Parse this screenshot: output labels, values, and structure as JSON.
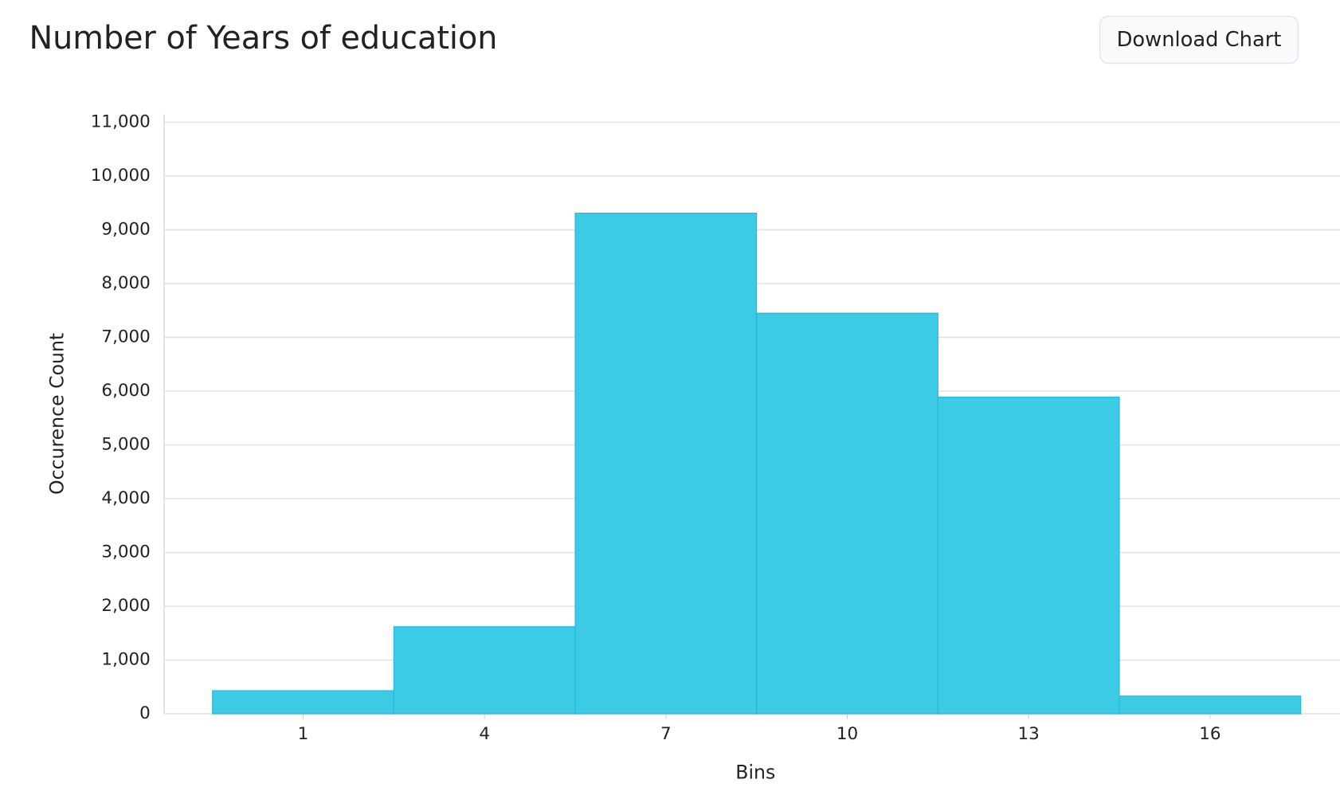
{
  "toolbar": {
    "button": "Download Chart"
  },
  "chart_data": {
    "type": "histogram",
    "title": "Number of Years of education",
    "x_label": "Bins",
    "y_label": "Occurence Count",
    "bins": [
      -0.5,
      2.5,
      5.5,
      8.5,
      11.5,
      14.5,
      17.5
    ],
    "values": [
      430,
      1620,
      9310,
      7450,
      5890,
      330
    ],
    "color": "#3ccae5",
    "xlim": [
      -1.3,
      18.15
    ],
    "xticks": [
      1,
      4,
      7,
      10,
      13,
      16
    ],
    "ylim": [
      0,
      11150
    ],
    "yticks": [
      0,
      {
        "value": 1000,
        "label": "1,000"
      },
      {
        "value": 2000,
        "label": "2,000"
      },
      {
        "value": 3000,
        "label": "3,000"
      },
      {
        "value": 4000,
        "label": "4,000"
      },
      {
        "value": 5000,
        "label": "5,000"
      },
      {
        "value": 6000,
        "label": "6,000"
      },
      {
        "value": 7000,
        "label": "7,000"
      },
      {
        "value": 8000,
        "label": "8,000"
      },
      {
        "value": 9000,
        "label": "9,000"
      },
      {
        "value": 10000,
        "label": "10,000"
      },
      {
        "value": 11000,
        "label": "11,000"
      }
    ],
    "grid": true
  }
}
